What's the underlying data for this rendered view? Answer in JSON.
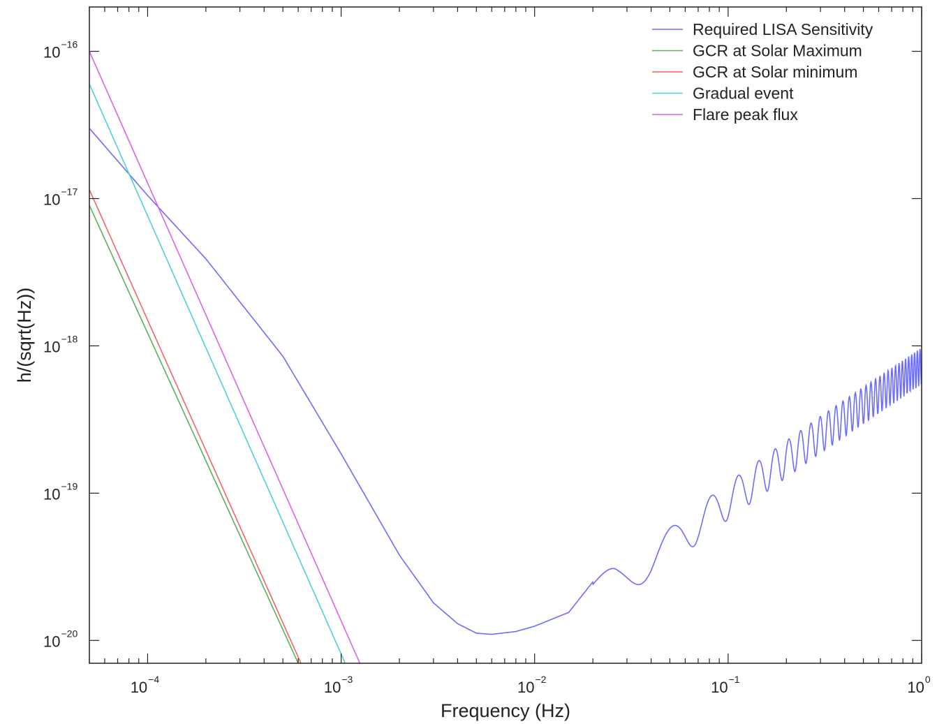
{
  "chart_data": {
    "type": "line",
    "xlabel": "Frequency (Hz)",
    "ylabel": "h/(sqrt(Hz))",
    "xscale": "log",
    "yscale": "log",
    "xlim": [
      5e-05,
      1
    ],
    "ylim": [
      7e-21,
      2e-16
    ],
    "grid": false,
    "legend_position": "top-right",
    "x_ticks": [
      {
        "base": "10",
        "exp": "−4",
        "value": 0.0001
      },
      {
        "base": "10",
        "exp": "−3",
        "value": 0.001
      },
      {
        "base": "10",
        "exp": "−2",
        "value": 0.01
      },
      {
        "base": "10",
        "exp": "−1",
        "value": 0.1
      },
      {
        "base": "10",
        "exp": "0",
        "value": 1
      }
    ],
    "y_ticks": [
      {
        "base": "10",
        "exp": "−16",
        "value": 1e-16
      },
      {
        "base": "10",
        "exp": "−17",
        "value": 1e-17
      },
      {
        "base": "10",
        "exp": "−18",
        "value": 1e-18
      },
      {
        "base": "10",
        "exp": "−19",
        "value": 1e-19
      },
      {
        "base": "10",
        "exp": "−20",
        "value": 1e-20
      }
    ],
    "series": [
      {
        "name": "Required LISA Sensitivity",
        "color": "#6b6bff",
        "x": [
          5e-05,
          0.0001,
          0.0002,
          0.0005,
          0.001,
          0.002,
          0.003,
          0.004,
          0.005,
          0.006,
          0.008,
          0.01,
          0.015,
          0.02,
          0.025,
          0.03,
          0.035,
          0.04,
          0.05,
          0.06,
          0.07,
          0.08,
          0.09,
          0.1,
          0.12,
          0.15,
          0.2,
          0.3,
          0.5,
          0.7,
          1.0
        ],
        "y": [
          3e-17,
          1.05e-17,
          3.9e-18,
          8.5e-19,
          1.85e-19,
          3.8e-20,
          1.8e-20,
          1.3e-20,
          1.12e-20,
          1.1e-20,
          1.15e-20,
          1.25e-20,
          1.55e-20,
          2.5e-20,
          3.9e-20,
          4.4e-20,
          3.7e-20,
          3e-20,
          4e-20,
          5.6e-20,
          5e-20,
          7e-20,
          9e-20,
          7.3e-20,
          1.1e-19,
          1.25e-19,
          1.7e-19,
          2.5e-19,
          4.2e-19,
          5.8e-19,
          8e-19
        ],
        "oscillation_start_hz": 0.02,
        "oscillation_period_hz": 0.031,
        "oscillation_depth": 0.28
      },
      {
        "name": "GCR at Solar Maximum",
        "color": "#5ab05a",
        "x": [
          5e-05,
          0.0006
        ],
        "y": [
          9e-18,
          7e-21
        ]
      },
      {
        "name": "GCR at Solar minimum",
        "color": "#f26464",
        "x": [
          5e-05,
          0.00062
        ],
        "y": [
          1.15e-17,
          7e-21
        ]
      },
      {
        "name": "Gradual event",
        "color": "#4fd0d8",
        "x": [
          5e-05,
          0.00105
        ],
        "y": [
          6e-17,
          7e-21
        ]
      },
      {
        "name": "Flare peak flux",
        "color": "#de60e6",
        "x": [
          5e-05,
          0.00125
        ],
        "y": [
          1e-16,
          7e-21
        ]
      }
    ]
  }
}
